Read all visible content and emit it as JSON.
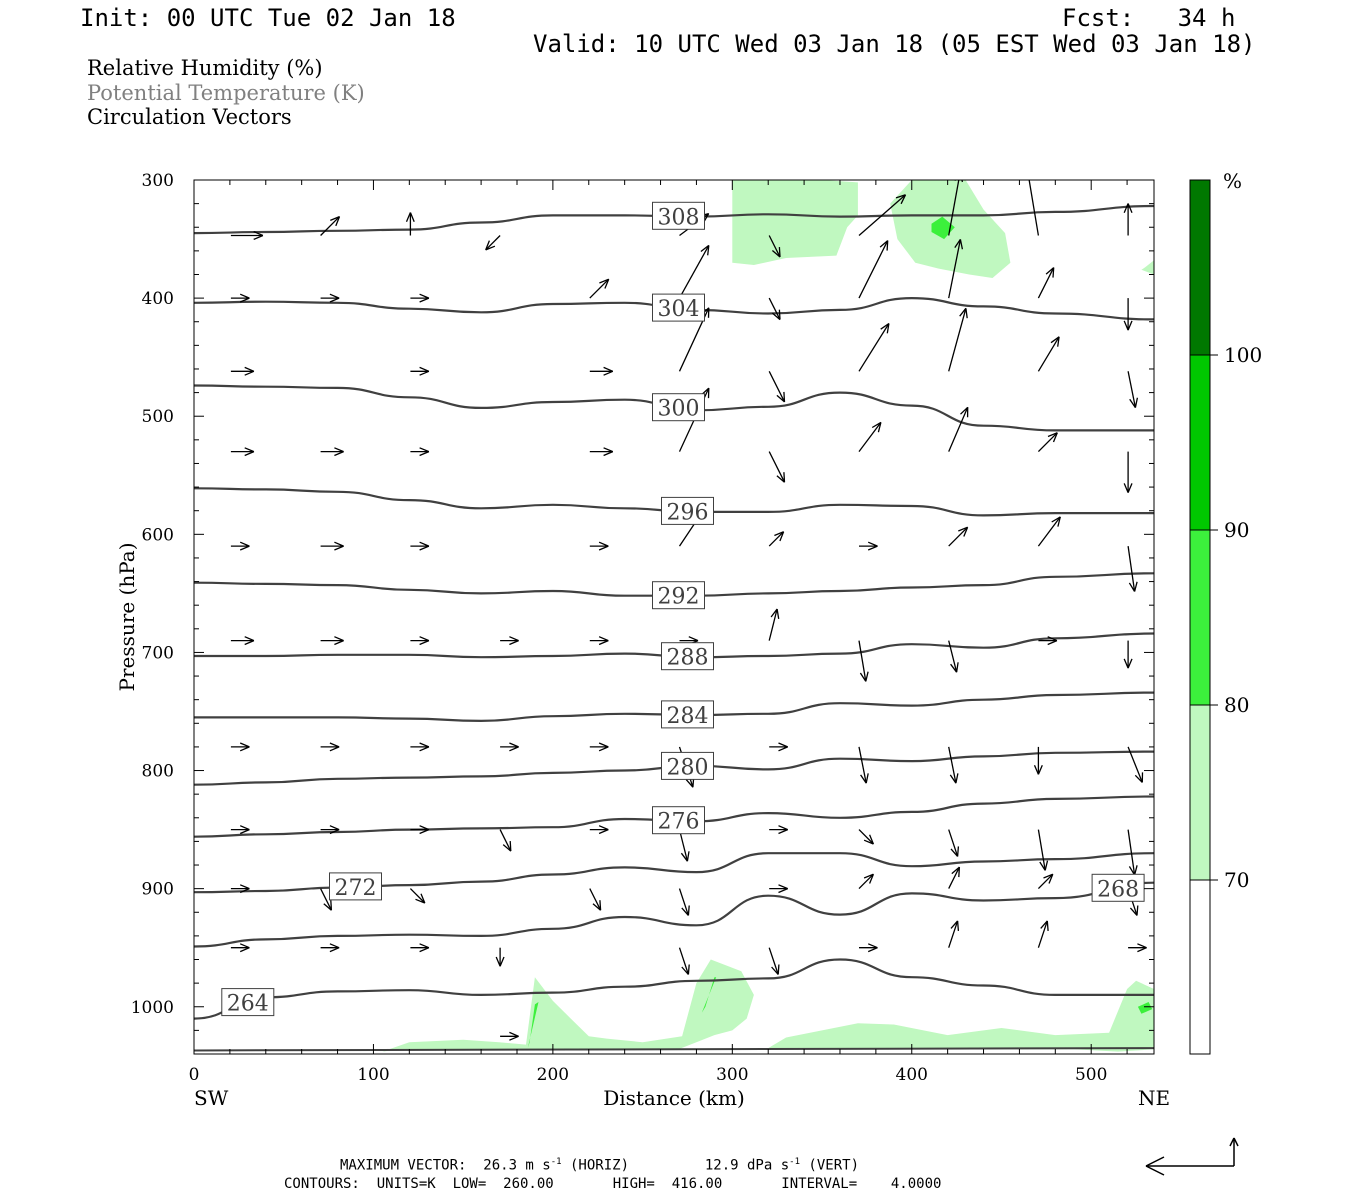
{
  "header": {
    "init": "Init: 00 UTC Tue 02 Jan 18",
    "fcst": "Fcst:   34 h",
    "valid": "Valid: 10 UTC Wed 03 Jan 18 (05 EST Wed 03 Jan 18)"
  },
  "fields": [
    "Relative Humidity (%)",
    "Potential Temperature (K)",
    "Circulation Vectors"
  ],
  "colors": {
    "rh70": "#c0f8c0",
    "rh80": "#3cf03c",
    "rh90": "#00c800",
    "rh100": "#007800",
    "contour": "#404040",
    "field2_text": "#808080"
  },
  "colorbar": {
    "unit": "%",
    "labels": [
      "100",
      "90",
      "80",
      "70"
    ],
    "levels": [
      70,
      80,
      90,
      100
    ]
  },
  "footer": {
    "max_vector": "MAXIMUM VECTOR:  26.3 m s",
    "horiz_sup": "-1",
    "horiz_tail": " (HORIZ)",
    "vert_value": "12.9 dPa s",
    "vert_sup": "-1",
    "vert_tail": " (VERT)",
    "contours": "CONTOURS:  UNITS=K  LOW=  260.00       HIGH=  416.00       INTERVAL=    4.0000"
  },
  "chart_data": {
    "type": "cross-section",
    "xlabel": "Distance (km)",
    "ylabel": "Pressure (hPa)",
    "xlim": [
      0,
      535
    ],
    "ylim": [
      1040,
      300
    ],
    "x_ticks": [
      "0",
      "100",
      "200",
      "300",
      "400",
      "500"
    ],
    "y_ticks": [
      "300",
      "400",
      "500",
      "600",
      "700",
      "800",
      "900",
      "1000"
    ],
    "x_end_labels": {
      "left": "SW",
      "right": "NE"
    },
    "contours": [
      {
        "theta": "308",
        "p": [
          345,
          344,
          343,
          342,
          336,
          330,
          330,
          331,
          329,
          331,
          330,
          330,
          327,
          322
        ],
        "label_x": 270
      },
      {
        "theta": "304",
        "p": [
          404,
          403,
          404,
          409,
          412,
          405,
          404,
          410,
          413,
          410,
          400,
          407,
          413,
          418
        ],
        "label_x": 270
      },
      {
        "theta": "300",
        "p": [
          474,
          475,
          476,
          484,
          493,
          488,
          486,
          495,
          492,
          480,
          491,
          508,
          512,
          512
        ],
        "label_x": 270
      },
      {
        "theta": "296",
        "p": [
          561,
          562,
          564,
          571,
          578,
          575,
          578,
          581,
          581,
          575,
          576,
          584,
          582,
          582
        ],
        "label_x": 275
      },
      {
        "theta": "292",
        "p": [
          641,
          642,
          643,
          647,
          650,
          648,
          652,
          652,
          650,
          648,
          645,
          643,
          636,
          633
        ],
        "label_x": 270
      },
      {
        "theta": "288",
        "p": [
          703,
          703,
          702,
          702,
          704,
          703,
          701,
          704,
          703,
          701,
          693,
          696,
          688,
          684
        ],
        "label_x": 275
      },
      {
        "theta": "284",
        "p": [
          755,
          755,
          755,
          756,
          758,
          754,
          752,
          753,
          752,
          743,
          745,
          740,
          736,
          734
        ],
        "label_x": 275
      },
      {
        "theta": "280",
        "p": [
          812,
          810,
          807,
          806,
          805,
          802,
          800,
          796,
          799,
          790,
          792,
          788,
          785,
          784
        ],
        "label_x": 275
      },
      {
        "theta": "276",
        "p": [
          856,
          854,
          852,
          850,
          849,
          848,
          841,
          843,
          836,
          840,
          835,
          828,
          824,
          822
        ],
        "label_x": 270
      },
      {
        "theta": "272",
        "p": [
          903,
          902,
          899,
          897,
          894,
          888,
          882,
          886,
          870,
          870,
          881,
          877,
          875,
          870
        ],
        "label_x": 90
      },
      {
        "theta": "268",
        "p": [
          949,
          943,
          940,
          939,
          940,
          934,
          924,
          931,
          906,
          922,
          904,
          910,
          908,
          895
        ],
        "label_x": 515
      },
      {
        "theta": "264",
        "p": [
          1010,
          992,
          987,
          986,
          990,
          988,
          983,
          978,
          976,
          960,
          975,
          982,
          990,
          990
        ],
        "label_x": 30
      }
    ],
    "contour_x": [
      0,
      40,
      80,
      120,
      160,
      200,
      240,
      280,
      320,
      360,
      400,
      440,
      480,
      535
    ],
    "vector_rows": [
      {
        "p": 347,
        "v": [
          [
            4,
            0
          ],
          [
            2,
            2
          ],
          [
            0,
            2
          ],
          [
            -1,
            -1
          ],
          [
            0,
            0
          ],
          [
            4,
            3
          ],
          [
            1,
            -2
          ],
          [
            8,
            7
          ],
          [
            2,
            11
          ],
          [
            -2,
            12
          ],
          [
            0,
            4
          ],
          [
            1,
            -6
          ],
          [
            -3,
            -6
          ]
        ]
      },
      {
        "p": 400,
        "v": [
          [
            1,
            0
          ],
          [
            1,
            0
          ],
          [
            1,
            0
          ],
          [
            0,
            0
          ],
          [
            2,
            2
          ],
          [
            5,
            9
          ],
          [
            1,
            -2
          ],
          [
            5,
            10
          ],
          [
            2,
            10
          ],
          [
            2,
            4
          ],
          [
            0,
            -4
          ],
          [
            1,
            -3
          ],
          [
            -2,
            -3
          ]
        ]
      },
      {
        "p": 462,
        "v": [
          [
            2,
            0
          ],
          [
            0,
            0
          ],
          [
            1,
            0
          ],
          [
            0,
            0
          ],
          [
            2,
            0
          ],
          [
            6,
            13
          ],
          [
            2,
            -4
          ],
          [
            5,
            8
          ],
          [
            3,
            11
          ],
          [
            3,
            5
          ],
          [
            1,
            -5
          ],
          [
            0,
            -5
          ],
          [
            -2,
            -4
          ]
        ]
      },
      {
        "p": 530,
        "v": [
          [
            2,
            0
          ],
          [
            2,
            0
          ],
          [
            1,
            0
          ],
          [
            0,
            0
          ],
          [
            2,
            0
          ],
          [
            6,
            13
          ],
          [
            2,
            -4
          ],
          [
            3,
            4
          ],
          [
            3,
            7
          ],
          [
            2,
            2
          ],
          [
            0,
            -6
          ],
          [
            1,
            -4
          ],
          [
            -1,
            -4
          ]
        ]
      },
      {
        "p": 610,
        "v": [
          [
            1,
            0
          ],
          [
            2,
            0
          ],
          [
            1,
            0
          ],
          [
            0,
            0
          ],
          [
            1,
            0
          ],
          [
            4,
            6
          ],
          [
            1,
            1
          ],
          [
            1,
            0
          ],
          [
            2,
            2
          ],
          [
            3,
            4
          ],
          [
            1,
            -7
          ],
          [
            1,
            -6
          ],
          [
            -1,
            -6
          ]
        ]
      },
      {
        "p": 690,
        "v": [
          [
            2,
            0
          ],
          [
            2,
            0
          ],
          [
            1,
            0
          ],
          [
            1,
            0
          ],
          [
            1,
            0
          ],
          [
            1,
            0
          ],
          [
            1,
            4
          ],
          [
            1,
            -6
          ],
          [
            1,
            -4
          ],
          [
            1,
            0
          ],
          [
            0,
            -3
          ],
          [
            -1,
            -3
          ],
          [
            -1,
            -1
          ]
        ]
      },
      {
        "p": 780,
        "v": [
          [
            1,
            0
          ],
          [
            1,
            0
          ],
          [
            1,
            0
          ],
          [
            1,
            0
          ],
          [
            1,
            0
          ],
          [
            2,
            -6
          ],
          [
            1,
            0
          ],
          [
            1,
            -5
          ],
          [
            1,
            -5
          ],
          [
            0,
            -3
          ],
          [
            2,
            -5
          ],
          [
            1,
            0
          ],
          [
            1,
            0
          ]
        ]
      },
      {
        "p": 850,
        "v": [
          [
            1,
            0
          ],
          [
            1,
            0
          ],
          [
            1,
            0
          ],
          [
            1,
            -2
          ],
          [
            1,
            0
          ],
          [
            1,
            -4
          ],
          [
            1,
            0
          ],
          [
            1,
            -1
          ],
          [
            1,
            -3
          ],
          [
            1,
            -6
          ],
          [
            1,
            -7
          ],
          [
            1,
            4
          ],
          [
            1,
            0
          ]
        ]
      },
      {
        "p": 900,
        "v": [
          [
            1,
            0
          ],
          [
            1,
            -2
          ],
          [
            1,
            -1
          ],
          [
            0,
            0
          ],
          [
            1,
            -2
          ],
          [
            1,
            -3
          ],
          [
            1,
            0
          ],
          [
            1,
            1
          ],
          [
            1,
            2
          ],
          [
            1,
            1
          ],
          [
            1,
            -3
          ],
          [
            1,
            4
          ],
          [
            1,
            -2
          ]
        ]
      },
      {
        "p": 950,
        "v": [
          [
            1,
            0
          ],
          [
            1,
            0
          ],
          [
            1,
            0
          ],
          [
            0,
            -1
          ],
          [
            0,
            0
          ],
          [
            1,
            -3
          ],
          [
            1,
            -3
          ],
          [
            1,
            0
          ],
          [
            1,
            3
          ],
          [
            1,
            3
          ],
          [
            1,
            0
          ],
          [
            1,
            2
          ],
          [
            0,
            0
          ]
        ]
      },
      {
        "p": 1025,
        "v": [
          [
            0,
            0
          ],
          [
            0,
            0
          ],
          [
            0,
            0
          ],
          [
            1,
            0
          ],
          [
            0,
            0
          ],
          [
            0,
            0
          ],
          [
            0,
            0
          ],
          [
            0,
            0
          ],
          [
            0,
            0
          ],
          [
            0,
            0
          ],
          [
            0,
            0
          ],
          [
            1,
            0
          ],
          [
            1,
            0
          ]
        ]
      }
    ],
    "vector_x": [
      15,
      65,
      115,
      165,
      215,
      265,
      315,
      365,
      415,
      465,
      515,
      535,
      545
    ],
    "rh_shading": [
      {
        "level": 70,
        "x": [
          300,
          300,
          312,
          330,
          358,
          364,
          370,
          370,
          350,
          330,
          312,
          300
        ],
        "p": [
          300,
          370,
          372,
          366,
          364,
          340,
          330,
          302,
          300,
          300,
          300,
          300
        ]
      },
      {
        "level": 70,
        "x": [
          388,
          392,
          402,
          415,
          432,
          445,
          455,
          452,
          440,
          430,
          400,
          388
        ],
        "p": [
          320,
          350,
          370,
          375,
          380,
          383,
          370,
          345,
          325,
          300,
          300,
          320
        ]
      },
      {
        "level": 70,
        "x": [
          530,
          535,
          535,
          528
        ],
        "p": [
          374,
          368,
          380,
          376
        ]
      },
      {
        "level": 80,
        "x": [
          411,
          417,
          424,
          418,
          411
        ],
        "p": [
          337,
          331,
          340,
          350,
          344
        ]
      },
      {
        "level": 70,
        "x": [
          105,
          120,
          150,
          170,
          185,
          190,
          200,
          210,
          220,
          230,
          250,
          272,
          280,
          288,
          305,
          312,
          308,
          300,
          290,
          280,
          270,
          255,
          240,
          220,
          205,
          195,
          185,
          165,
          140,
          115,
          105
        ],
        "p": [
          1038,
          1030,
          1028,
          1030,
          1032,
          975,
          995,
          1010,
          1025,
          1027,
          1030,
          1025,
          980,
          960,
          970,
          990,
          1010,
          1020,
          1024,
          1030,
          1036,
          1036,
          1036,
          1036,
          1036,
          1036,
          1036,
          1036,
          1036,
          1036,
          1038
        ]
      },
      {
        "level": 80,
        "x": [
          186,
          192,
          190,
          187
        ],
        "p": [
          1035,
          996,
          998,
          1030
        ]
      },
      {
        "level": 80,
        "x": [
          283,
          291,
          290,
          285,
          283
        ],
        "p": [
          1005,
          975,
          975,
          1000,
          1005
        ]
      },
      {
        "level": 70,
        "x": [
          320,
          330,
          350,
          370,
          390,
          420,
          450,
          480,
          510,
          520,
          525,
          535,
          535,
          515,
          490,
          450,
          410,
          370,
          340,
          320
        ],
        "p": [
          1035,
          1026,
          1020,
          1014,
          1015,
          1024,
          1018,
          1024,
          1022,
          985,
          978,
          985,
          1036,
          1038,
          1036,
          1036,
          1036,
          1036,
          1036,
          1035
        ]
      },
      {
        "level": 80,
        "x": [
          526,
          532,
          534,
          528,
          526
        ],
        "p": [
          1000,
          996,
          1002,
          1006,
          1000
        ]
      }
    ],
    "reference_arrow": {
      "horiz": "26.3 m s-1",
      "vert": "12.9 dPa s-1"
    }
  }
}
